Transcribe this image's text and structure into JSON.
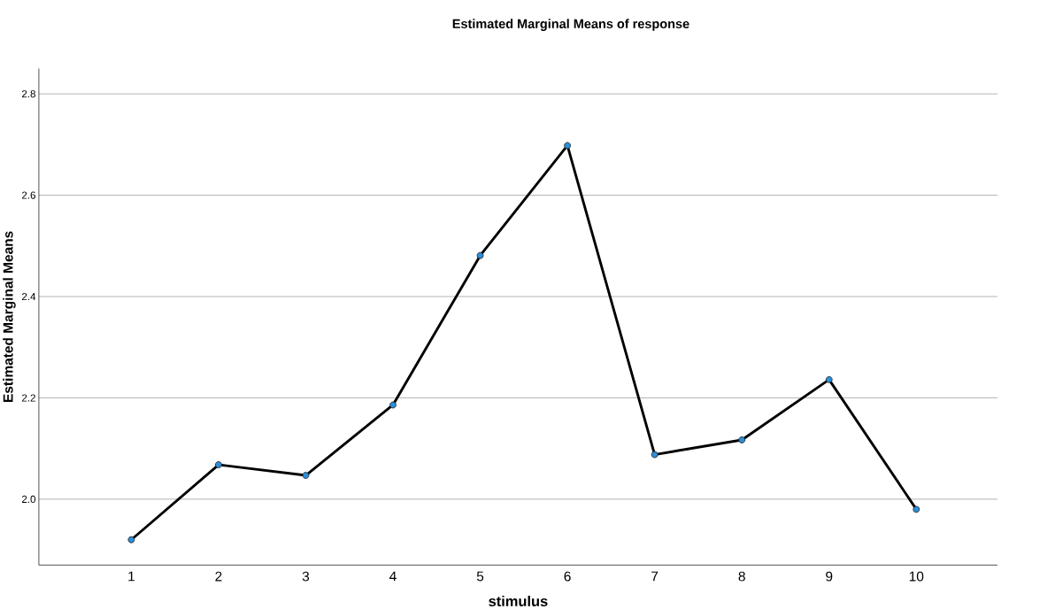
{
  "chart_data": {
    "type": "line",
    "title": "Estimated Marginal Means of response",
    "xlabel": "stimulus",
    "ylabel": "Estimated Marginal Means",
    "categories": [
      "1",
      "2",
      "3",
      "4",
      "5",
      "6",
      "7",
      "8",
      "9",
      "10"
    ],
    "series": [
      {
        "color": "#000000",
        "values": [
          1.92,
          2.068,
          2.047,
          2.186,
          2.481,
          2.698,
          2.088,
          2.117,
          2.236,
          1.98
        ]
      }
    ],
    "ylim": [
      1.87,
      2.85
    ],
    "yticks": [
      {
        "value": 2.0,
        "label": "2.0"
      },
      {
        "value": 2.2,
        "label": "2.2"
      },
      {
        "value": 2.4,
        "label": "2.4"
      },
      {
        "value": 2.6,
        "label": "2.6"
      },
      {
        "value": 2.8,
        "label": "2.8"
      }
    ],
    "grid": "y",
    "marker": "circle",
    "line_style": "solid"
  }
}
